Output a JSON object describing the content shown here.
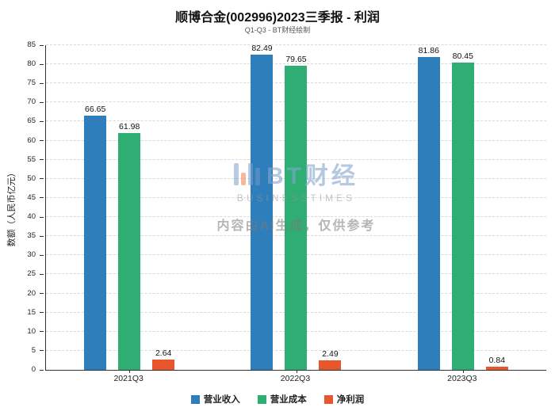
{
  "header": {
    "title": "顺博合金(002996)2023三季报 - 利润",
    "subtitle": "Q1-Q3 - BT财经绘制"
  },
  "watermark": {
    "brand": "BT财经",
    "brand_sub": "BUSINESSTIMES",
    "disclaimer": "内容由AI生成，仅供参考"
  },
  "chart_data": {
    "type": "bar",
    "title": "顺博合金(002996)2023三季报 - 利润",
    "subtitle": "Q1-Q3 - BT财经绘制",
    "categories": [
      "2021Q3",
      "2022Q3",
      "2023Q3"
    ],
    "series": [
      {
        "name": "营业收入",
        "color": "#2e7ebc",
        "values": [
          66.65,
          82.49,
          81.86
        ]
      },
      {
        "name": "营业成本",
        "color": "#2fae73",
        "values": [
          61.98,
          79.65,
          80.45
        ]
      },
      {
        "name": "净利润",
        "color": "#e8562b",
        "values": [
          2.64,
          2.49,
          0.84
        ]
      }
    ],
    "ylabel": "数额（人民币亿元）",
    "xlabel": "",
    "ylim": [
      0,
      85
    ],
    "ytick_step": 5,
    "grid": true,
    "legend_position": "bottom"
  }
}
